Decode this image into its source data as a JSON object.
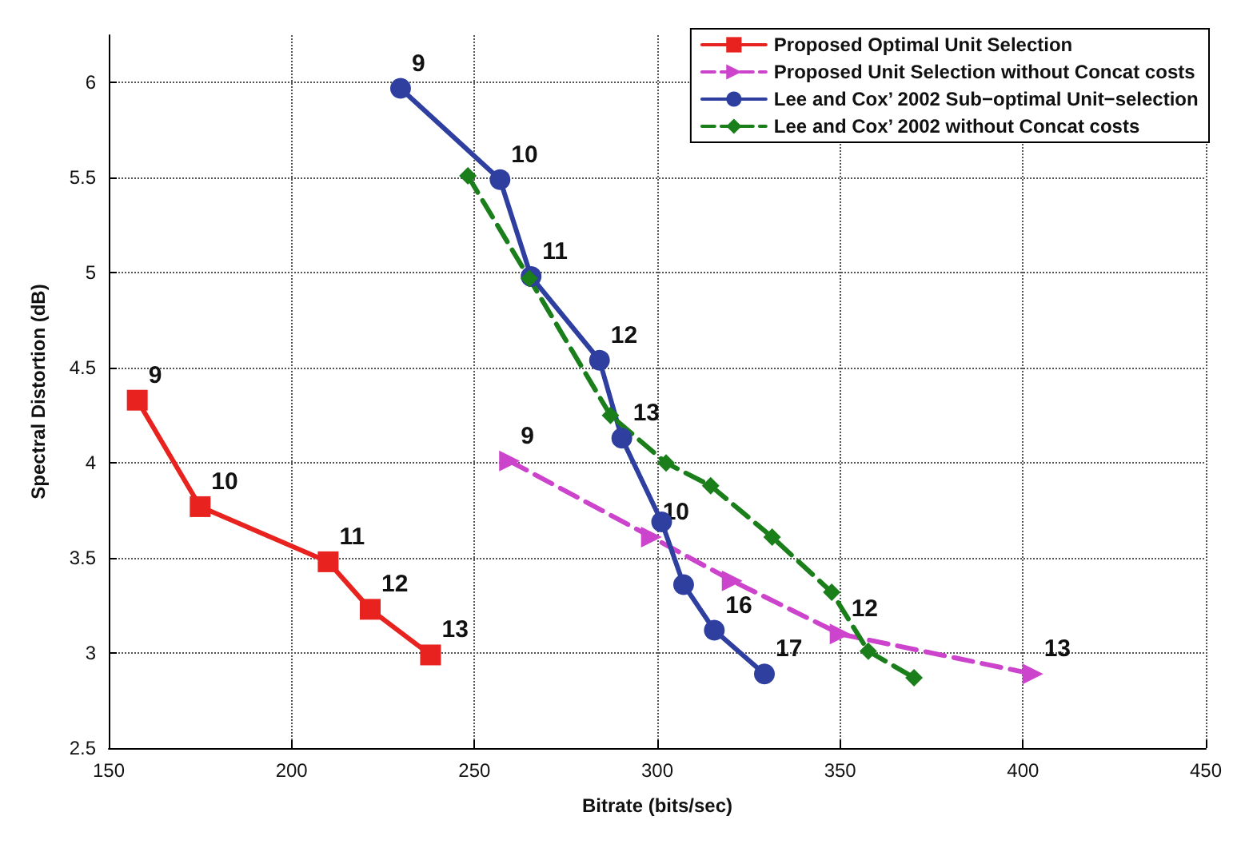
{
  "chart_data": {
    "type": "line",
    "xlabel": "Bitrate (bits/sec)",
    "ylabel": "Spectral Distortion (dB)",
    "xlim": [
      150,
      450
    ],
    "xticks": [
      150,
      200,
      250,
      300,
      350,
      400,
      450
    ],
    "ylim": [
      2.5,
      6.25
    ],
    "yticks": [
      2.5,
      3,
      3.5,
      4,
      4.5,
      5,
      5.5,
      6
    ],
    "grid": true,
    "legend": "top right",
    "series": [
      {
        "name": "Proposed Optimal Unit Selection",
        "color": "#e8231f",
        "marker": "square",
        "line_style": "solid",
        "x": [
          157.8,
          175,
          210,
          221.5,
          238
        ],
        "values": [
          4.33,
          3.77,
          3.48,
          3.23,
          2.99
        ]
      },
      {
        "name": "Proposed Unit Selection without Concat costs",
        "color": "#cc44cc",
        "marker": "triangle",
        "line_style": "dashed",
        "x": [
          259.6,
          298.4,
          320.5,
          350,
          402.7
        ],
        "values": [
          4.01,
          3.61,
          3.38,
          3.1,
          2.89
        ]
      },
      {
        "name": "Lee and Cox’ 2002 Sub−optimal Unit−selection",
        "color": "#2e3fa0",
        "marker": "circle",
        "line_style": "solid",
        "x": [
          229.8,
          257,
          265.5,
          284.2,
          290.3,
          301.2,
          307.2,
          315.6,
          329.3
        ],
        "values": [
          5.97,
          5.49,
          4.98,
          4.54,
          4.13,
          3.69,
          3.36,
          3.12,
          2.89
        ]
      },
      {
        "name": "Lee and Cox’ 2002 without Concat costs",
        "color": "#1a7f1a",
        "marker": "diamond",
        "line_style": "dashed",
        "x": [
          248.2,
          265,
          287.2,
          302.4,
          314.6,
          331.4,
          347.7,
          357.7,
          370.2
        ],
        "values": [
          5.51,
          4.97,
          4.25,
          4.0,
          3.88,
          3.61,
          3.32,
          3.01,
          2.87
        ]
      }
    ],
    "annotations": [
      {
        "text": "9",
        "x": 157.8,
        "y": 4.33
      },
      {
        "text": "10",
        "x": 175,
        "y": 3.77
      },
      {
        "text": "11",
        "x": 210,
        "y": 3.48
      },
      {
        "text": "12",
        "x": 221.5,
        "y": 3.23
      },
      {
        "text": "13",
        "x": 238,
        "y": 2.99
      },
      {
        "text": "9",
        "x": 259.6,
        "y": 4.01
      },
      {
        "text": "10",
        "x": 298.4,
        "y": 3.61
      },
      {
        "text": "12",
        "x": 350,
        "y": 3.1
      },
      {
        "text": "13",
        "x": 402.7,
        "y": 2.89
      },
      {
        "text": "9",
        "x": 229.8,
        "y": 5.97
      },
      {
        "text": "10",
        "x": 257,
        "y": 5.49
      },
      {
        "text": "11",
        "x": 265.5,
        "y": 4.98
      },
      {
        "text": "12",
        "x": 284.2,
        "y": 4.54
      },
      {
        "text": "13",
        "x": 290.3,
        "y": 4.13
      },
      {
        "text": "16",
        "x": 315.6,
        "y": 3.12
      },
      {
        "text": "17",
        "x": 329.3,
        "y": 2.89
      }
    ]
  }
}
